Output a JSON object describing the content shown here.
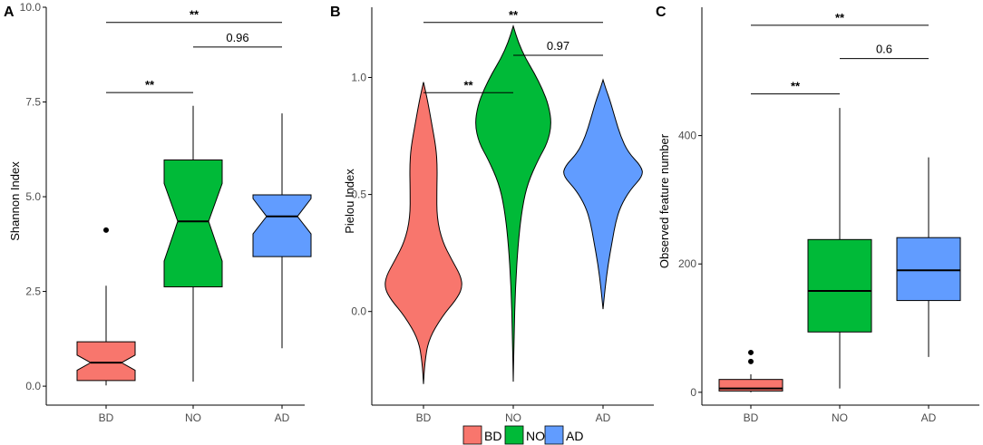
{
  "colors": {
    "BD": "#F8766D",
    "NO": "#00BA38",
    "AD": "#619CFF"
  },
  "legend": {
    "items": [
      {
        "key": "BD",
        "label": "BD"
      },
      {
        "key": "NO",
        "label": "NO"
      },
      {
        "key": "AD",
        "label": "AD"
      }
    ]
  },
  "chart_data": [
    {
      "panel": "A",
      "type": "box",
      "notched": true,
      "title": "",
      "xlabel": "",
      "ylabel": "Shannon Index",
      "ylim": [
        -0.5,
        10.0
      ],
      "yticks": [
        0.0,
        2.5,
        5.0,
        7.5,
        10.0
      ],
      "ytick_labels": [
        "0.0",
        "2.5",
        "5.0",
        "7.5",
        "10.0"
      ],
      "categories": [
        "BD",
        "NO",
        "AD"
      ],
      "boxes": [
        {
          "group": "BD",
          "whisker_low": 0.02,
          "q1": 0.15,
          "median": 0.62,
          "q3": 1.17,
          "whisker_high": 2.65,
          "notch_low": 0.42,
          "notch_high": 0.82,
          "outliers": [
            4.12
          ]
        },
        {
          "group": "NO",
          "whisker_low": 0.12,
          "q1": 2.62,
          "median": 4.35,
          "q3": 5.97,
          "whisker_high": 7.4,
          "notch_low": 3.3,
          "notch_high": 5.35,
          "outliers": []
        },
        {
          "group": "AD",
          "whisker_low": 1.0,
          "q1": 3.42,
          "median": 4.48,
          "q3": 5.05,
          "whisker_high": 7.2,
          "notch_low": 4.02,
          "notch_high": 4.95,
          "outliers": []
        }
      ],
      "comparisons": [
        {
          "from": "BD",
          "to": "NO",
          "label": "**",
          "y": 7.75
        },
        {
          "from": "NO",
          "to": "AD",
          "label": "0.96",
          "y": 8.95
        },
        {
          "from": "BD",
          "to": "AD",
          "label": "**",
          "y": 9.6
        }
      ]
    },
    {
      "panel": "B",
      "type": "violin",
      "title": "",
      "xlabel": "",
      "ylabel": "Pielou Index",
      "ylim": [
        -0.4,
        1.3
      ],
      "yticks": [
        0.0,
        0.5,
        1.0
      ],
      "ytick_labels": [
        "0.0",
        "0.5",
        "1.0"
      ],
      "categories": [
        "BD",
        "NO",
        "AD"
      ],
      "violins": [
        {
          "group": "BD",
          "profile": [
            [
              -0.31,
              0.0
            ],
            [
              -0.22,
              0.03
            ],
            [
              -0.12,
              0.12
            ],
            [
              -0.02,
              0.45
            ],
            [
              0.05,
              0.78
            ],
            [
              0.1,
              0.93
            ],
            [
              0.15,
              0.9
            ],
            [
              0.22,
              0.68
            ],
            [
              0.3,
              0.45
            ],
            [
              0.4,
              0.32
            ],
            [
              0.52,
              0.32
            ],
            [
              0.62,
              0.33
            ],
            [
              0.7,
              0.3
            ],
            [
              0.8,
              0.2
            ],
            [
              0.9,
              0.1
            ],
            [
              0.98,
              0.0
            ]
          ]
        },
        {
          "group": "NO",
          "profile": [
            [
              -0.3,
              0.0
            ],
            [
              -0.1,
              0.02
            ],
            [
              0.1,
              0.05
            ],
            [
              0.3,
              0.12
            ],
            [
              0.45,
              0.22
            ],
            [
              0.55,
              0.35
            ],
            [
              0.65,
              0.6
            ],
            [
              0.72,
              0.82
            ],
            [
              0.8,
              0.92
            ],
            [
              0.88,
              0.85
            ],
            [
              0.95,
              0.7
            ],
            [
              1.02,
              0.5
            ],
            [
              1.08,
              0.3
            ],
            [
              1.15,
              0.12
            ],
            [
              1.22,
              0.0
            ]
          ]
        },
        {
          "group": "AD",
          "profile": [
            [
              0.01,
              0.0
            ],
            [
              0.1,
              0.05
            ],
            [
              0.2,
              0.12
            ],
            [
              0.3,
              0.22
            ],
            [
              0.38,
              0.3
            ],
            [
              0.45,
              0.42
            ],
            [
              0.52,
              0.65
            ],
            [
              0.58,
              0.96
            ],
            [
              0.62,
              0.92
            ],
            [
              0.68,
              0.6
            ],
            [
              0.75,
              0.42
            ],
            [
              0.82,
              0.3
            ],
            [
              0.9,
              0.17
            ],
            [
              0.95,
              0.07
            ],
            [
              0.99,
              0.0
            ]
          ]
        }
      ],
      "comparisons": [
        {
          "from": "BD",
          "to": "NO",
          "label": "**",
          "y": 0.935
        },
        {
          "from": "NO",
          "to": "AD",
          "label": "0.97",
          "y": 1.095
        },
        {
          "from": "BD",
          "to": "AD",
          "label": "**",
          "y": 1.235
        }
      ]
    },
    {
      "panel": "C",
      "type": "box",
      "notched": false,
      "title": "",
      "xlabel": "",
      "ylabel": "Observed feature number",
      "ylim": [
        -20,
        600
      ],
      "yticks": [
        0,
        200,
        400
      ],
      "ytick_labels": [
        "0",
        "200",
        "400"
      ],
      "categories": [
        "BD",
        "NO",
        "AD"
      ],
      "boxes": [
        {
          "group": "BD",
          "whisker_low": 0,
          "q1": 2,
          "median": 6,
          "q3": 20,
          "whisker_high": 28,
          "outliers": [
            48,
            62
          ]
        },
        {
          "group": "NO",
          "whisker_low": 6,
          "q1": 94,
          "median": 158,
          "q3": 238,
          "whisker_high": 443,
          "outliers": []
        },
        {
          "group": "AD",
          "whisker_low": 55,
          "q1": 143,
          "median": 190,
          "q3": 241,
          "whisker_high": 366,
          "outliers": []
        }
      ],
      "comparisons": [
        {
          "from": "BD",
          "to": "NO",
          "label": "**",
          "y": 465
        },
        {
          "from": "NO",
          "to": "AD",
          "label": "0.6",
          "y": 520
        },
        {
          "from": "BD",
          "to": "AD",
          "label": "**",
          "y": 572
        }
      ]
    }
  ]
}
